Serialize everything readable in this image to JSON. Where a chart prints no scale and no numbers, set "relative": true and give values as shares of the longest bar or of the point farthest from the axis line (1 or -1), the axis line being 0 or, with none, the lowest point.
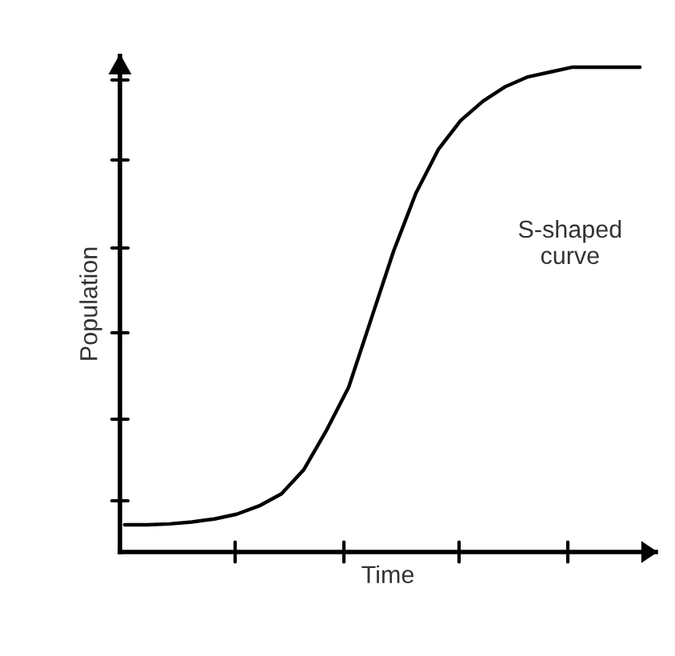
{
  "chart_data": {
    "type": "line",
    "relative": true,
    "xlabel": "Time",
    "ylabel": "Population",
    "annotations": [
      "S-shaped\ncurve"
    ],
    "marker": "none",
    "line_style": "solid",
    "categories": [
      null,
      null,
      null,
      null,
      null,
      null,
      null,
      null,
      null,
      null,
      null,
      null,
      null,
      null,
      null,
      null,
      null,
      null,
      null,
      null,
      null,
      null,
      null,
      null
    ],
    "series": [
      {
        "color": "#000000",
        "values": [
          0.056,
          0.056,
          0.058,
          0.062,
          0.068,
          0.078,
          0.095,
          0.12,
          0.17,
          0.25,
          0.34,
          0.48,
          0.62,
          0.74,
          0.83,
          0.89,
          0.93,
          0.96,
          0.98,
          0.99,
          1.0,
          1.0,
          1.0,
          1.0
        ]
      }
    ]
  }
}
